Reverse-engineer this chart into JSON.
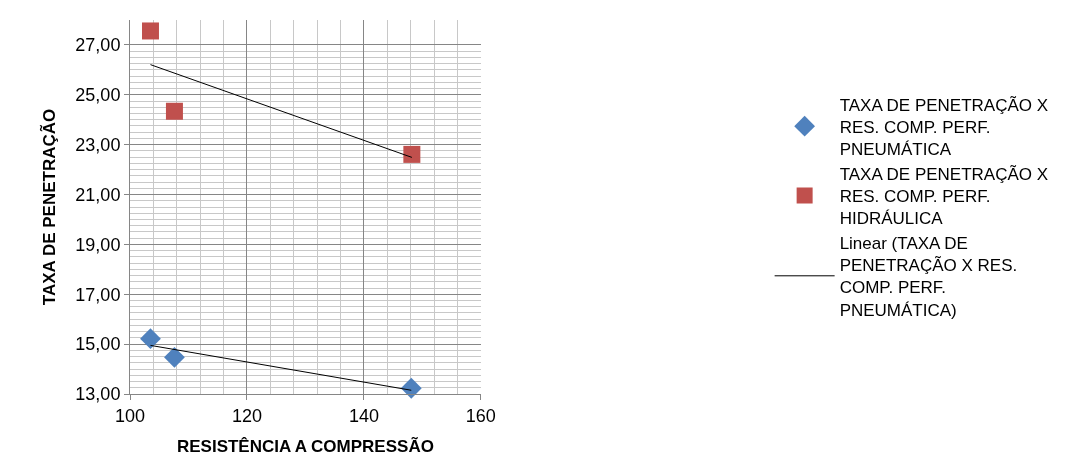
{
  "chart_data": {
    "type": "scatter",
    "xlabel": "RESISTÊNCIA A COMPRESSÃO",
    "ylabel": "TAXA DE PENETRAÇÃO",
    "xlim": [
      100,
      160
    ],
    "xticks": [
      100,
      120,
      140,
      160
    ],
    "ylim": [
      13,
      28
    ],
    "yticks": [
      {
        "value": 13,
        "label": "13,00"
      },
      {
        "value": 15,
        "label": "15,00"
      },
      {
        "value": 17,
        "label": "17,00"
      },
      {
        "value": 19,
        "label": "19,00"
      },
      {
        "value": 21,
        "label": "21,00"
      },
      {
        "value": 23,
        "label": "23,00"
      },
      {
        "value": 25,
        "label": "25,00"
      },
      {
        "value": 27,
        "label": "27,00"
      }
    ],
    "grid": true,
    "legend": "right",
    "series": [
      {
        "name": "TAXA DE PENETRAÇÃO X RES. COMP. PERF. PNEUMÁTICA",
        "color": "#4f81bd",
        "marker": "diamond",
        "x": [
          103.5,
          107.6,
          148.1
        ],
        "values": [
          15.22,
          14.47,
          13.23
        ]
      },
      {
        "name": "TAXA DE PENETRAÇÃO X RES. COMP. PERF. HIDRÁULICA",
        "color": "#c0504d",
        "marker": "square",
        "x": [
          103.5,
          107.6,
          148.2
        ],
        "values": [
          27.56,
          24.34,
          22.61
        ]
      },
      {
        "name": "Linear (TAXA DE PENETRAÇÃO X RES. COMP. PERF. PNEUMÁTICA)",
        "type": "line",
        "color": "#000000",
        "marker": "none",
        "x": [
          103.5,
          148.1
        ],
        "values": [
          14.95,
          13.15
        ]
      },
      {
        "type": "line",
        "color": "#000000",
        "marker": "none",
        "x": [
          103.5,
          148.2
        ],
        "values": [
          26.21,
          22.49
        ]
      }
    ]
  }
}
